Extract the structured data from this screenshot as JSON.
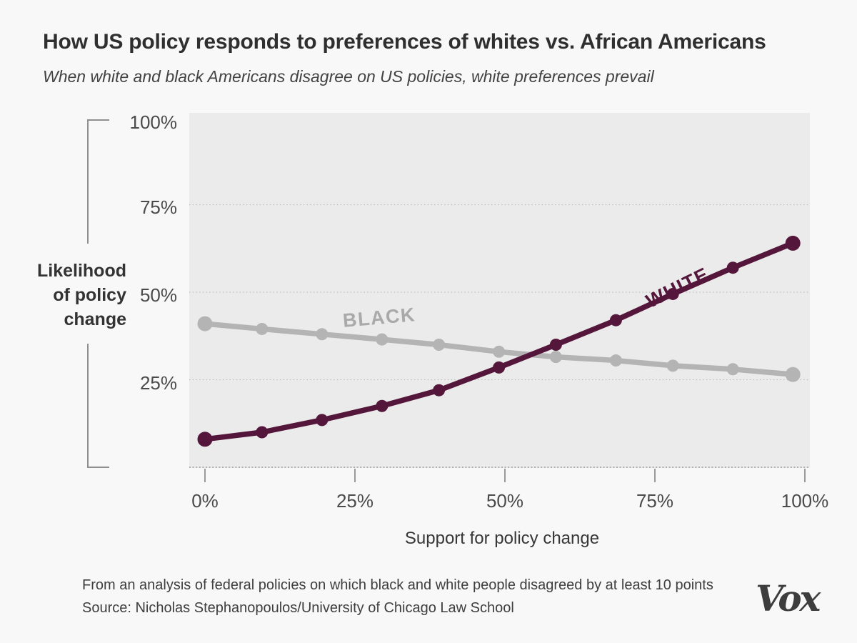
{
  "header": {
    "title": "How US policy responds to preferences of whites vs. African Americans",
    "subtitle": "When white and black Americans disagree on US policies, white preferences prevail"
  },
  "chart": {
    "y_axis_label_lines": [
      "Likelihood",
      "of policy",
      "change"
    ],
    "y_ticks": [
      "100%",
      "75%",
      "50%",
      "25%"
    ],
    "x_ticks": [
      "0%",
      "25%",
      "50%",
      "75%",
      "100%"
    ],
    "x_axis_label": "Support for policy change"
  },
  "chart_data": {
    "type": "line",
    "title": "How US policy responds to preferences of whites vs. African Americans",
    "xlabel": "Support for policy change",
    "ylabel": "Likelihood of policy change",
    "xlim": [
      0,
      100
    ],
    "ylim": [
      0,
      100
    ],
    "grid": "dotted horizontal gridlines at 25, 50, 75 plus dotted baseline at 0",
    "legend_position": "labels on lines",
    "x": [
      0,
      9.5,
      19.5,
      29.5,
      39,
      49,
      58.5,
      68.5,
      78,
      88,
      98
    ],
    "axes": {
      "gridlines": [
        25,
        50,
        75
      ],
      "x_tick_values": [
        0,
        25,
        50,
        75,
        100
      ],
      "y_tick_values": [
        100,
        75,
        50,
        25
      ]
    },
    "series": [
      {
        "name": "BLACK",
        "color": "#b4b4b4",
        "label_color": "#a9a9a9",
        "values": [
          41,
          39.5,
          38,
          36.5,
          35,
          33,
          31.5,
          30.5,
          29,
          28,
          26.5
        ]
      },
      {
        "name": "WHITE",
        "color": "#54163a",
        "label_color": "#54163a",
        "values": [
          8,
          10,
          13.5,
          17.5,
          22,
          28.5,
          35,
          42,
          49.5,
          57,
          64
        ]
      }
    ]
  },
  "footer": {
    "note": "From an analysis of federal policies on which black and white people disagreed by at least 10 points",
    "source": "Source: Nicholas Stephanopoulos/University of Chicago Law School",
    "logo": "Vox"
  },
  "colors": {
    "page_background": "#f8f8f8",
    "plot_background": "#ebebeb",
    "white_series": "#54163a",
    "black_series": "#b4b4b4",
    "text_dark": "#2f2f2f"
  }
}
